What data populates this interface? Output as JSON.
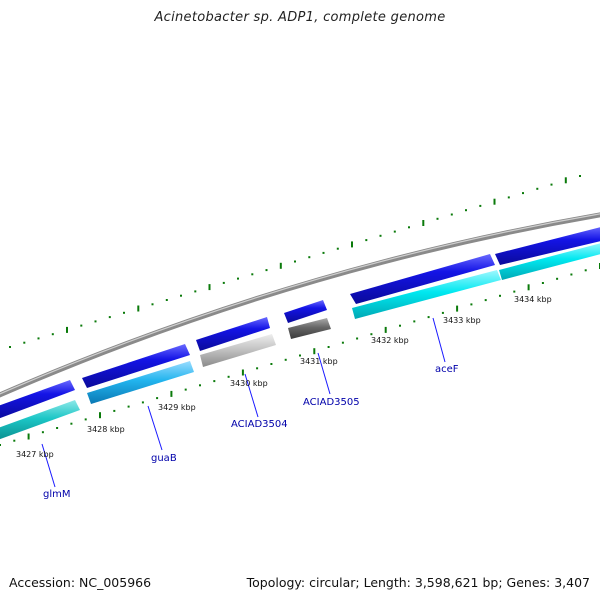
{
  "title": "Acinetobacter sp. ADP1, complete genome",
  "footer": {
    "accession": "Accession: NC_005966",
    "summary": "Topology: circular; Length: 3,598,621 bp; Genes: 3,407"
  },
  "colors": {
    "backbone": "#8a8a8a",
    "forward_gene": "#1414e6",
    "reverse_gene_cyan": "#00e8f0",
    "reverse_gene_teal": "#1cc6c6",
    "reverse_gene_skyblue": "#22b4ee",
    "pseudogene_light": "#c8c8c8",
    "pseudogene_dark": "#666666",
    "tick": "#0a7a0a",
    "label": "#0000aa"
  },
  "kbp_labels": [
    "3427 kbp",
    "3428 kbp",
    "3429 kbp",
    "3430 kbp",
    "3431 kbp",
    "3432 kbp",
    "3433 kbp",
    "3434 kbp"
  ],
  "gene_labels": [
    "glmM",
    "guaB",
    "ACIAD3504",
    "ACIAD3505",
    "aceF"
  ]
}
